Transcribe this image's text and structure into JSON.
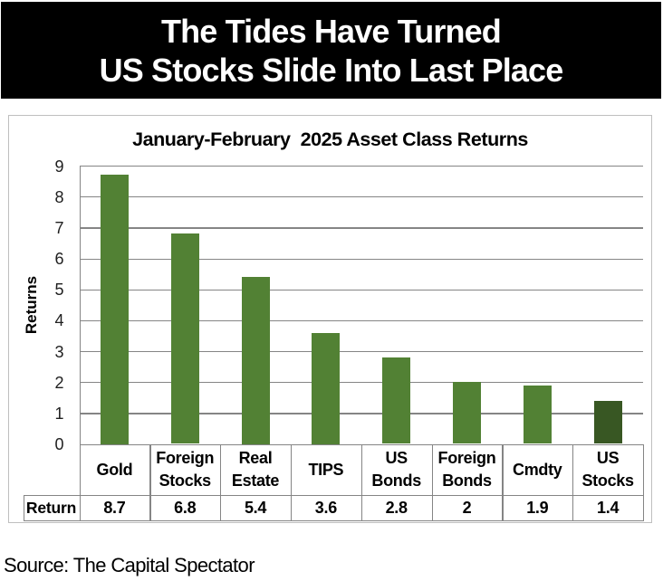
{
  "banner": {
    "line1": "The Tides Have Turned",
    "line2": "US Stocks Slide Into Last Place",
    "background": "#000000",
    "text_color": "#ffffff"
  },
  "chart_data": {
    "type": "bar",
    "title": "January-February  2025 Asset Class Returns",
    "ylabel": "Returns",
    "xlabel": "",
    "ylim": [
      0,
      9
    ],
    "yticks": [
      0,
      1,
      2,
      3,
      4,
      5,
      6,
      7,
      8,
      9
    ],
    "grid": true,
    "legend_position": "none",
    "data_table_shown": true,
    "categories": [
      "Gold",
      "Foreign Stocks",
      "Real Estate",
      "TIPS",
      "US Bonds",
      "Foreign Bonds",
      "Cmdty",
      "US Stocks"
    ],
    "category_label_lines": [
      [
        "Gold"
      ],
      [
        "Foreign",
        "Stocks"
      ],
      [
        "Real",
        "Estate"
      ],
      [
        "TIPS"
      ],
      [
        "US",
        "Bonds"
      ],
      [
        "Foreign",
        "Bonds"
      ],
      [
        "Cmdty"
      ],
      [
        "US",
        "Stocks"
      ]
    ],
    "series": [
      {
        "name": "Return",
        "values": [
          8.7,
          6.8,
          5.4,
          3.6,
          2.8,
          2,
          1.9,
          1.4
        ]
      }
    ],
    "value_display": [
      "8.7",
      "6.8",
      "5.4",
      "3.6",
      "2.8",
      "2",
      "1.9",
      "1.4"
    ],
    "colors": {
      "bar_default": "#528134",
      "bar_highlight_last": "#385723",
      "gridline": "#858585",
      "axis_line": "#858585",
      "table_border": "#858585",
      "chart_border": "#bfbfbf",
      "tick_text": "#1f1f1f",
      "label_text": "#000000"
    }
  },
  "footer": {
    "source": "Source: The Capital Spectator"
  }
}
